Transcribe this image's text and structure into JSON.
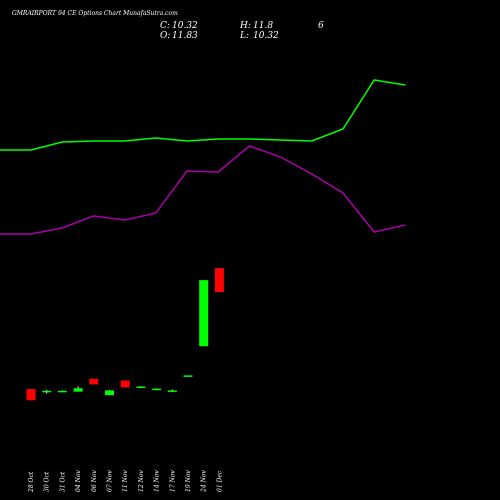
{
  "chart_data": {
    "type": "candlestick",
    "title": "GMRAIRPORT 94  CE Options  Chart MunafaSutra.com",
    "ohlc": {
      "c_label": "C:",
      "c_value": "10.32",
      "h_label": "H:",
      "h_value": "11.8",
      "o_label": "O:",
      "o_value": "11.83",
      "l_label": "L:",
      "l_value": "10.32",
      "extra": "6"
    },
    "categories": [
      "28 Oct",
      "30 Oct",
      "31 Oct",
      "04 Nov",
      "06 Nov",
      "07 Nov",
      "11 Nov",
      "12 Nov",
      "14 Nov",
      "17 Nov",
      "19 Nov",
      "24 Nov",
      "01 Dec"
    ],
    "candles": [
      {
        "open": 3.6,
        "high": 3.6,
        "low": 2.3,
        "close": 2.3
      },
      {
        "open": 3.3,
        "high": 3.5,
        "low": 3.1,
        "close": 3.4
      },
      {
        "open": 3.35,
        "high": 3.45,
        "low": 3.3,
        "close": 3.4
      },
      {
        "open": 3.3,
        "high": 3.9,
        "low": 3.3,
        "close": 3.7
      },
      {
        "open": 4.8,
        "high": 4.8,
        "low": 4.15,
        "close": 4.15
      },
      {
        "open": 2.9,
        "high": 3.5,
        "low": 2.9,
        "close": 3.45
      },
      {
        "open": 4.6,
        "high": 4.6,
        "low": 3.8,
        "close": 3.8
      },
      {
        "open": 3.8,
        "high": 3.95,
        "low": 3.8,
        "close": 3.9
      },
      {
        "open": 3.55,
        "high": 3.7,
        "low": 3.55,
        "close": 3.65
      },
      {
        "open": 3.35,
        "high": 3.55,
        "low": 3.25,
        "close": 3.45
      },
      {
        "open": 5.2,
        "high": 5.2,
        "low": 5.2,
        "close": 5.2
      },
      {
        "open": 8.6,
        "high": 16.3,
        "low": 8.6,
        "close": 16.3
      },
      {
        "open": 17.7,
        "high": 17.7,
        "low": 14.9,
        "close": 14.9
      }
    ],
    "colors": {
      "up": "#00ff00",
      "down": "#ff0000",
      "neutral": "#ffffff",
      "line_green": "#00ff00",
      "line_magenta": "#aa00aa",
      "background": "#000000"
    },
    "green_line": [
      150,
      150,
      142,
      141,
      141,
      138,
      141,
      139,
      139,
      140,
      141,
      129,
      80,
      85
    ],
    "magenta_line": [
      234,
      234,
      228,
      216,
      220,
      213,
      171,
      172,
      146,
      157,
      174,
      193,
      232,
      225
    ],
    "line_y_inverted": true,
    "line_y_range": [
      0,
      500
    ],
    "price_range": [
      0,
      25
    ]
  }
}
